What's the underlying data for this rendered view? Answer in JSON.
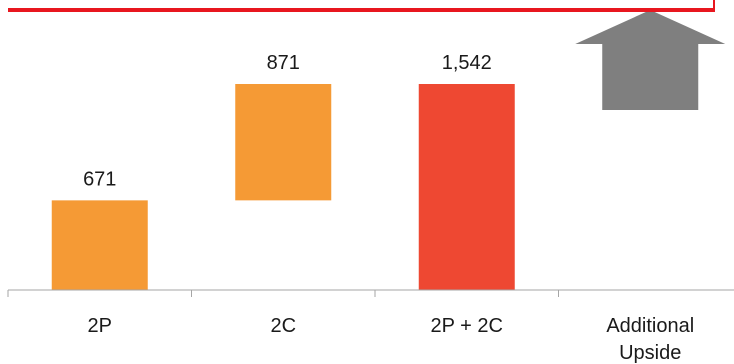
{
  "chart_data": {
    "type": "bar",
    "subtype": "waterfall",
    "categories": [
      "2P",
      "2C",
      "2P + 2C",
      "Additional Upside"
    ],
    "category_lines": [
      [
        "2P"
      ],
      [
        "2C"
      ],
      [
        "2P + 2C"
      ],
      [
        "Additional",
        "Upside"
      ]
    ],
    "bars": [
      {
        "category": "2P",
        "base": 0,
        "value": 671,
        "label": "671",
        "color": "#F59A35"
      },
      {
        "category": "2C",
        "base": 671,
        "value": 871,
        "label": "871",
        "color": "#F59A35"
      },
      {
        "category": "2P + 2C",
        "base": 0,
        "value": 1542,
        "label": "1,542",
        "color": "#EE4832"
      }
    ],
    "upside_arrow": {
      "category": "Additional Upside",
      "color": "#7F7F7F"
    },
    "reference_line_color": "#E8171F",
    "ylim": [
      0,
      2000
    ],
    "grid": false,
    "legend": "none"
  }
}
